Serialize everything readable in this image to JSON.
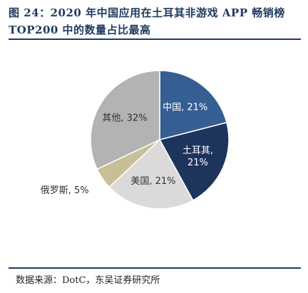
{
  "figure": {
    "title_line1": "图 24：2020 年中国应用在土耳其非游戏 APP 畅销榜",
    "title_line2": "TOP200 中的数量占比最高",
    "source": "数据来源：DotC，东吴证券研究所"
  },
  "chart_data": {
    "type": "pie",
    "start_angle_deg": 0,
    "direction": "clockwise",
    "slices": [
      {
        "name": "中国",
        "value": 21,
        "value_label": "21%",
        "color": "#355e92",
        "label_color": "#ffffff",
        "label_position": "inside",
        "label_lines": [
          "中国, 21%"
        ]
      },
      {
        "name": "土耳其",
        "value": 21,
        "value_label": "21%",
        "color": "#1d355c",
        "label_color": "#ffffff",
        "label_position": "inside",
        "label_lines": [
          "土耳其,",
          "21%"
        ]
      },
      {
        "name": "美国",
        "value": 21,
        "value_label": "21%",
        "color": "#dadada",
        "label_color": "#333333",
        "label_position": "inside",
        "label_lines": [
          "美国, 21%"
        ]
      },
      {
        "name": "俄罗斯",
        "value": 5,
        "value_label": "5%",
        "color": "#c7bf98",
        "label_color": "#333333",
        "label_position": "outside",
        "label_lines": [
          "俄罗斯, 5%"
        ]
      },
      {
        "name": "其他",
        "value": 32,
        "value_label": "32%",
        "color": "#b3b3b3",
        "label_color": "#333333",
        "label_position": "inside",
        "label_lines": [
          "其他, 32%"
        ]
      }
    ]
  }
}
